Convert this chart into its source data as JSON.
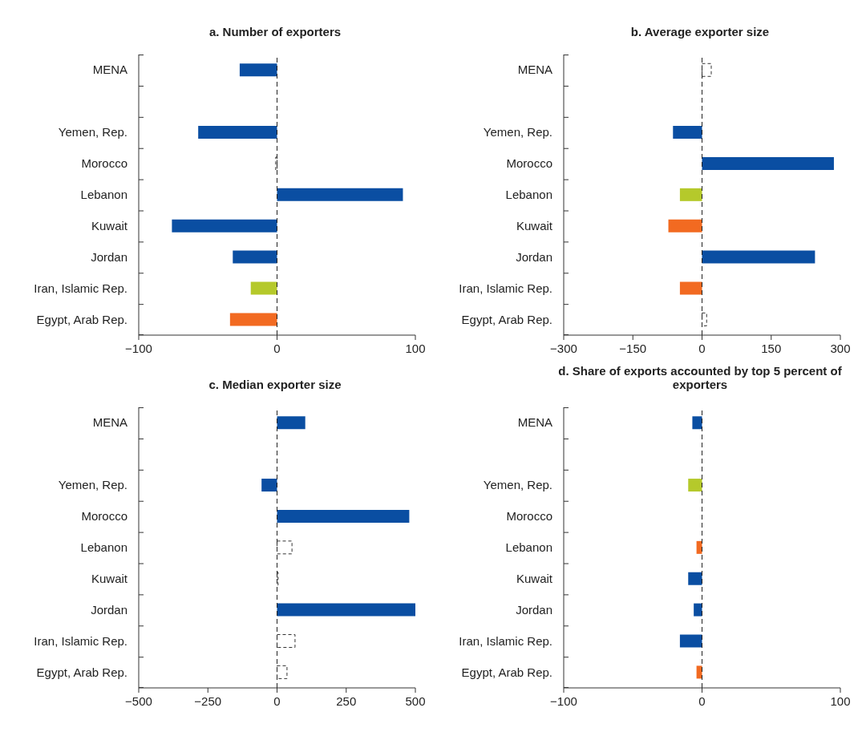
{
  "chart_data": [
    {
      "type": "bar",
      "orientation": "horizontal",
      "title": "a. Number of exporters",
      "categories": [
        "MENA",
        null,
        "Yemen, Rep.",
        "Morocco",
        "Lebanon",
        "Kuwait",
        "Jordan",
        "Iran, Islamic Rep.",
        "Egypt, Arab Rep."
      ],
      "values": [
        -27,
        null,
        -57,
        -1,
        91,
        -76,
        -32,
        -19,
        -34
      ],
      "colors": [
        "#0a4ea2",
        "#ffffff",
        "#0a4ea2",
        "#ffffff",
        "#0a4ea2",
        "#0a4ea2",
        "#0a4ea2",
        "#b5c92b",
        "#f26a21"
      ],
      "xlim": [
        -100,
        100
      ],
      "xticks": [
        {
          "value": -100,
          "label": "−100"
        },
        0,
        100
      ],
      "ref_lines": [
        {
          "axis": "x",
          "value": 0,
          "line_style": "dashed"
        }
      ]
    },
    {
      "type": "bar",
      "orientation": "horizontal",
      "title": "b. Average exporter size",
      "categories": [
        "MENA",
        null,
        "Yemen, Rep.",
        "Morocco",
        "Lebanon",
        "Kuwait",
        "Jordan",
        "Iran, Islamic Rep.",
        "Egypt, Arab Rep."
      ],
      "values": [
        20,
        null,
        -63,
        286,
        -48,
        -73,
        245,
        -48,
        10
      ],
      "colors": [
        "#ffffff",
        "#ffffff",
        "#0a4ea2",
        "#0a4ea2",
        "#b5c92b",
        "#f26a21",
        "#0a4ea2",
        "#f26a21",
        "#ffffff"
      ],
      "xlim": [
        -300,
        300
      ],
      "xticks": [
        {
          "value": -300,
          "label": "−300"
        },
        {
          "value": -150,
          "label": "−150"
        },
        0,
        150,
        300
      ],
      "ref_lines": [
        {
          "axis": "x",
          "value": 0,
          "line_style": "dashed"
        }
      ]
    },
    {
      "type": "bar",
      "orientation": "horizontal",
      "title": "c. Median exporter size",
      "categories": [
        "MENA",
        null,
        "Yemen, Rep.",
        "Morocco",
        "Lebanon",
        "Kuwait",
        "Jordan",
        "Iran, Islamic Rep.",
        "Egypt, Arab Rep."
      ],
      "values": [
        102,
        null,
        -56,
        478,
        54,
        4,
        500,
        65,
        36
      ],
      "colors": [
        "#0a4ea2",
        "#ffffff",
        "#0a4ea2",
        "#0a4ea2",
        "#ffffff",
        "#ffffff",
        "#0a4ea2",
        "#ffffff",
        "#ffffff"
      ],
      "xlim": [
        -500,
        500
      ],
      "xticks": [
        {
          "value": -500,
          "label": "−500"
        },
        {
          "value": -250,
          "label": "−250"
        },
        0,
        250,
        500
      ],
      "ref_lines": [
        {
          "axis": "x",
          "value": 0,
          "line_style": "dashed"
        }
      ]
    },
    {
      "type": "bar",
      "orientation": "horizontal",
      "title": "d. Share of exports accounted by top 5 percent of exporters",
      "categories": [
        "MENA",
        null,
        "Yemen, Rep.",
        "Morocco",
        "Lebanon",
        "Kuwait",
        "Jordan",
        "Iran, Islamic Rep.",
        "Egypt, Arab Rep."
      ],
      "values": [
        -7,
        null,
        -10,
        null,
        -4,
        -10,
        -6,
        -16,
        -4
      ],
      "colors": [
        "#0a4ea2",
        "#ffffff",
        "#b5c92b",
        "#ffffff",
        "#f26a21",
        "#0a4ea2",
        "#0a4ea2",
        "#0a4ea2",
        "#f26a21"
      ],
      "xlim": [
        -100,
        100
      ],
      "xticks": [
        {
          "value": -100,
          "label": "−100"
        },
        0,
        100
      ],
      "ref_lines": [
        {
          "axis": "x",
          "value": 0,
          "line_style": "dashed"
        }
      ]
    }
  ]
}
